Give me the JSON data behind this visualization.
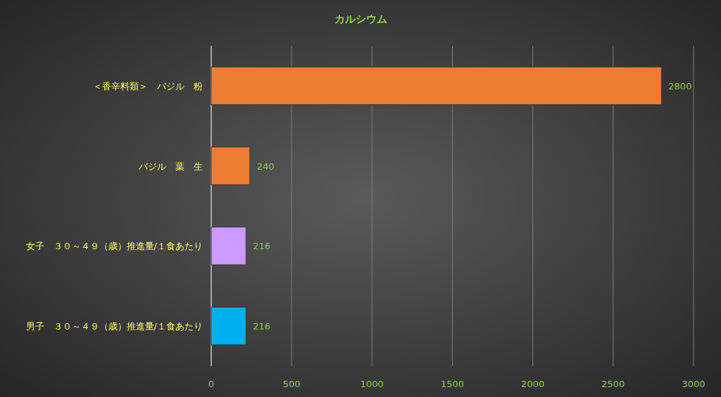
{
  "chart_data": {
    "type": "bar",
    "orientation": "horizontal",
    "title": "カルシウム",
    "categories": [
      "＜香辛料類＞　バジル　粉",
      "バジル　葉　生",
      "女子　３０～４９（歳）推進量/１食あたり",
      "男子　３０～４９（歳）推進量/１食あたり"
    ],
    "values": [
      2800,
      240,
      216,
      216
    ],
    "colors": [
      "#ed7d31",
      "#ed7d31",
      "#cc99ff",
      "#00b0f0"
    ],
    "xlim": [
      0,
      3000
    ],
    "xticks": [
      0,
      500,
      1000,
      1500,
      2000,
      2500,
      3000
    ],
    "grid": "x",
    "data_labels": true
  }
}
